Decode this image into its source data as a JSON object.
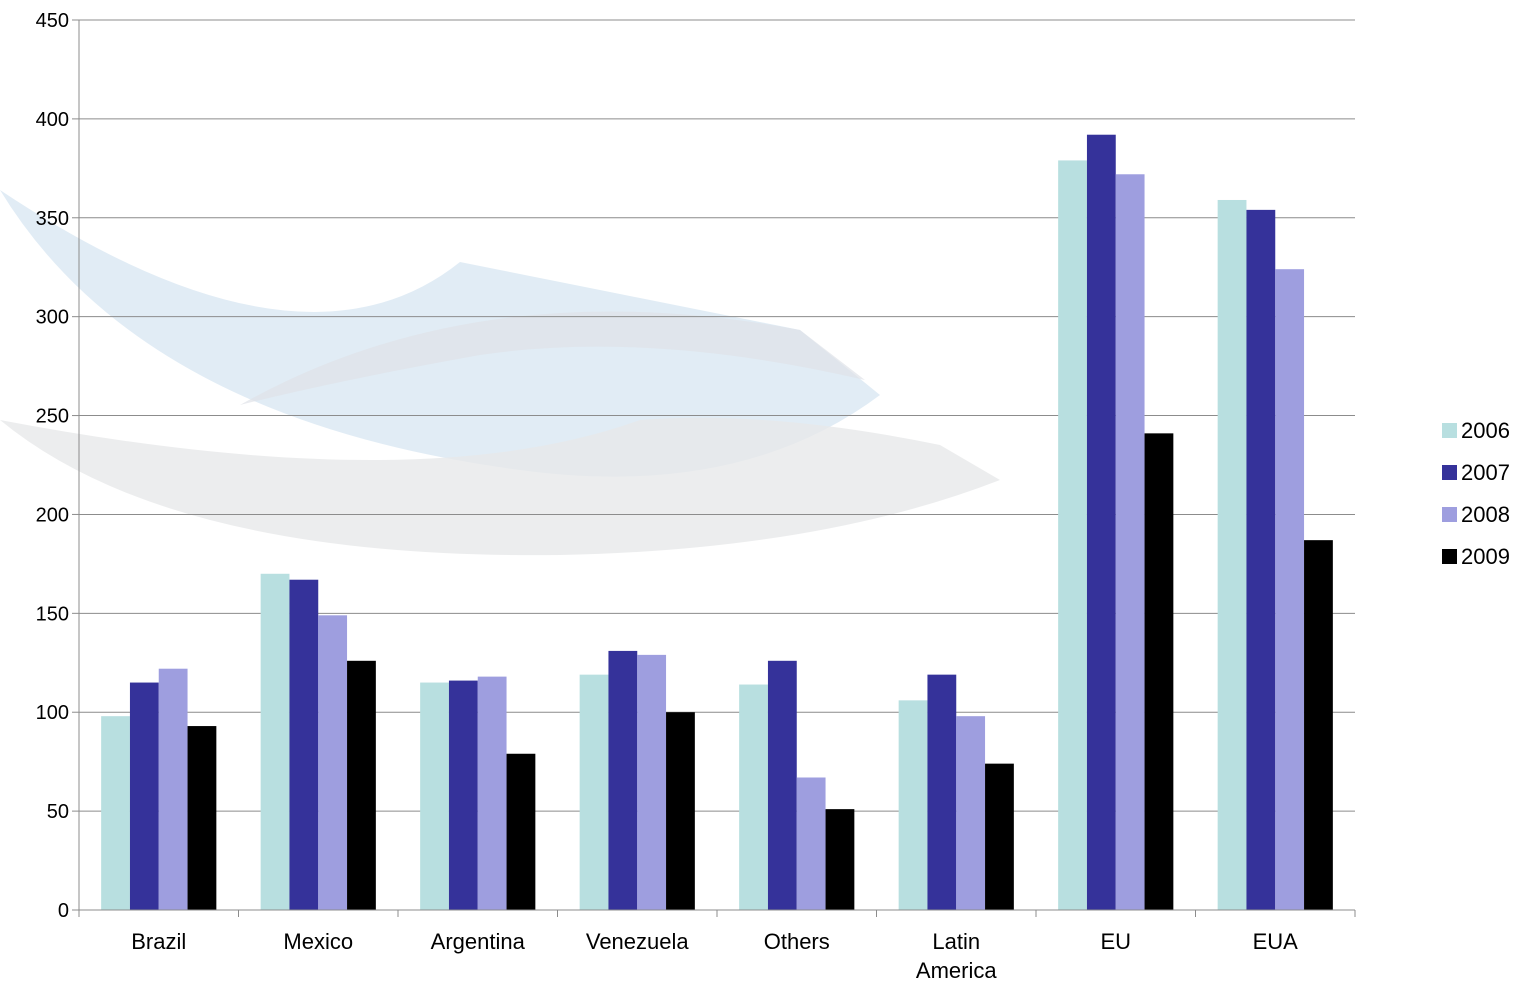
{
  "chart_data": {
    "type": "bar",
    "categories": [
      "Brazil",
      "Mexico",
      "Argentina",
      "Venezuela",
      "Others",
      "Latin America",
      "EU",
      "EUA"
    ],
    "ylim": [
      0,
      450
    ],
    "yticks": [
      "0",
      "50",
      "100",
      "150",
      "200",
      "250",
      "300",
      "350",
      "400",
      "450"
    ],
    "grid": true,
    "legend_position": "right",
    "series": [
      {
        "name": "2006",
        "color": "#b8dfe0",
        "values": [
          98,
          170,
          115,
          119,
          114,
          106,
          379,
          359
        ]
      },
      {
        "name": "2007",
        "color": "#35329a",
        "values": [
          115,
          167,
          116,
          131,
          126,
          119,
          392,
          354
        ]
      },
      {
        "name": "2008",
        "color": "#9e9edf",
        "values": [
          122,
          149,
          118,
          129,
          67,
          98,
          372,
          324
        ]
      },
      {
        "name": "2009",
        "color": "#000000",
        "values": [
          93,
          126,
          79,
          100,
          51,
          74,
          241,
          187
        ]
      }
    ]
  }
}
